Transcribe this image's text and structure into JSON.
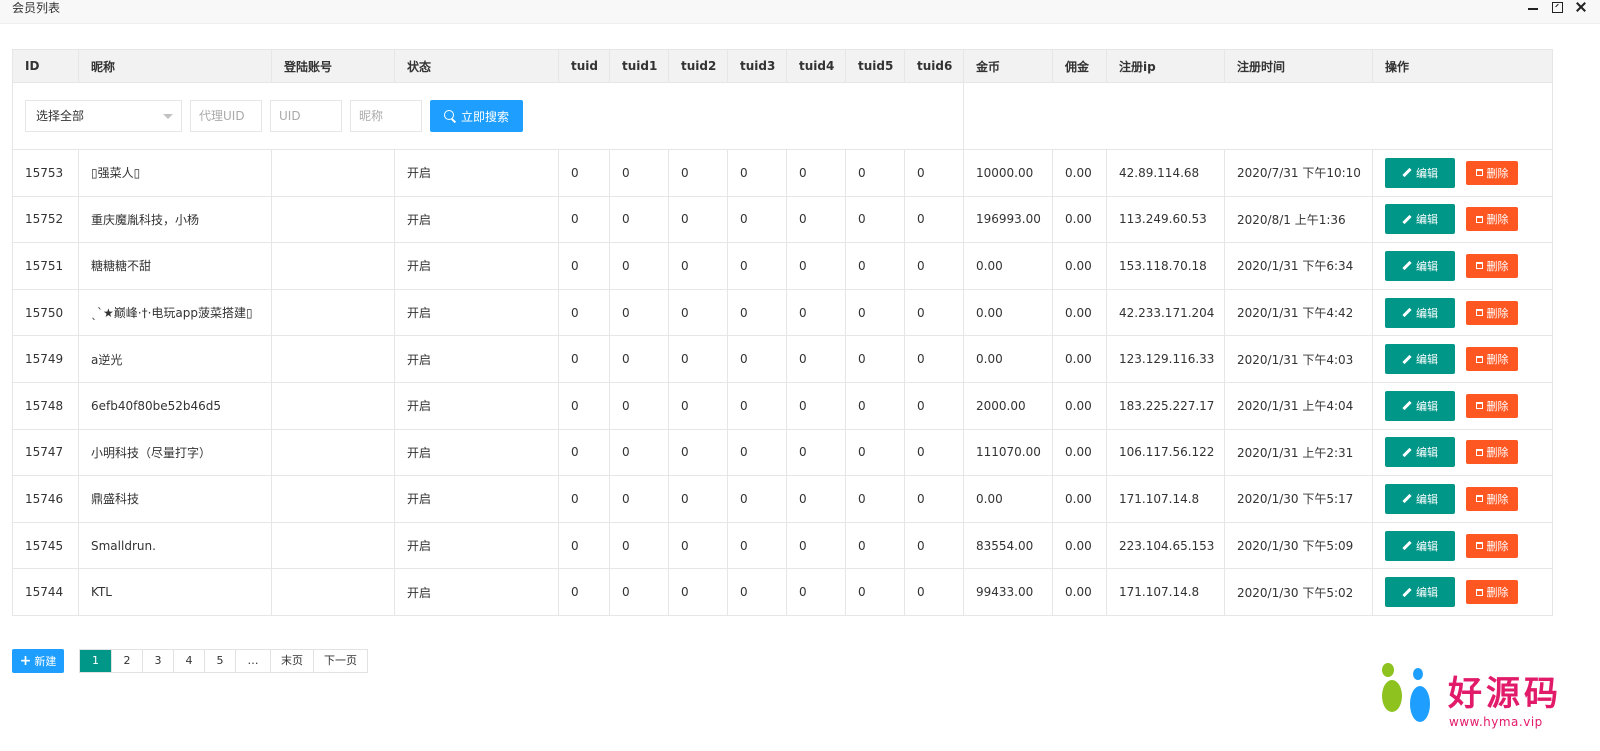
{
  "window": {
    "title": "会员列表"
  },
  "columns": [
    "ID",
    "昵称",
    "登陆账号",
    "状态",
    "tuid",
    "tuid1",
    "tuid2",
    "tuid3",
    "tuid4",
    "tuid5",
    "tuid6",
    "金币",
    "佣金",
    "注册ip",
    "注册时间",
    "操作"
  ],
  "filter": {
    "select_value": "选择全部",
    "agent_uid_placeholder": "代理UID",
    "uid_placeholder": "UID",
    "nickname_placeholder": "昵称",
    "search_label": "立即搜索"
  },
  "rows": [
    {
      "id": "15753",
      "nickname": "▯强菜人▯",
      "account": "",
      "status": "开启",
      "tuid": "0",
      "tuid1": "0",
      "tuid2": "0",
      "tuid3": "0",
      "tuid4": "0",
      "tuid5": "0",
      "tuid6": "0",
      "coins": "10000.00",
      "commission": "0.00",
      "ip": "42.89.114.68",
      "time": "2020/7/31 下午10:10"
    },
    {
      "id": "15752",
      "nickname": "重庆魔胤科技，小杨",
      "account": "",
      "status": "开启",
      "tuid": "0",
      "tuid1": "0",
      "tuid2": "0",
      "tuid3": "0",
      "tuid4": "0",
      "tuid5": "0",
      "tuid6": "0",
      "coins": "196993.00",
      "commission": "0.00",
      "ip": "113.249.60.53",
      "time": "2020/8/1 上午1:36"
    },
    {
      "id": "15751",
      "nickname": "糖糖糖不甜",
      "account": "",
      "status": "开启",
      "tuid": "0",
      "tuid1": "0",
      "tuid2": "0",
      "tuid3": "0",
      "tuid4": "0",
      "tuid5": "0",
      "tuid6": "0",
      "coins": "0.00",
      "commission": "0.00",
      "ip": "153.118.70.18",
      "time": "2020/1/31 下午6:34"
    },
    {
      "id": "15750",
      "nickname": "ˎˋ★巅峰·†·电玩app菠菜搭建▯",
      "account": "",
      "status": "开启",
      "tuid": "0",
      "tuid1": "0",
      "tuid2": "0",
      "tuid3": "0",
      "tuid4": "0",
      "tuid5": "0",
      "tuid6": "0",
      "coins": "0.00",
      "commission": "0.00",
      "ip": "42.233.171.204",
      "time": "2020/1/31 下午4:42"
    },
    {
      "id": "15749",
      "nickname": "a逆光",
      "account": "",
      "status": "开启",
      "tuid": "0",
      "tuid1": "0",
      "tuid2": "0",
      "tuid3": "0",
      "tuid4": "0",
      "tuid5": "0",
      "tuid6": "0",
      "coins": "0.00",
      "commission": "0.00",
      "ip": "123.129.116.33",
      "time": "2020/1/31 下午4:03"
    },
    {
      "id": "15748",
      "nickname": "6efb40f80be52b46d5",
      "account": "",
      "status": "开启",
      "tuid": "0",
      "tuid1": "0",
      "tuid2": "0",
      "tuid3": "0",
      "tuid4": "0",
      "tuid5": "0",
      "tuid6": "0",
      "coins": "2000.00",
      "commission": "0.00",
      "ip": "183.225.227.17",
      "time": "2020/1/31 上午4:04"
    },
    {
      "id": "15747",
      "nickname": "小明科技（尽量打字）",
      "account": "",
      "status": "开启",
      "tuid": "0",
      "tuid1": "0",
      "tuid2": "0",
      "tuid3": "0",
      "tuid4": "0",
      "tuid5": "0",
      "tuid6": "0",
      "coins": "111070.00",
      "commission": "0.00",
      "ip": "106.117.56.122",
      "time": "2020/1/31 上午2:31"
    },
    {
      "id": "15746",
      "nickname": "鼎盛科技",
      "account": "",
      "status": "开启",
      "tuid": "0",
      "tuid1": "0",
      "tuid2": "0",
      "tuid3": "0",
      "tuid4": "0",
      "tuid5": "0",
      "tuid6": "0",
      "coins": "0.00",
      "commission": "0.00",
      "ip": "171.107.14.8",
      "time": "2020/1/30 下午5:17"
    },
    {
      "id": "15745",
      "nickname": "Smalldrun.",
      "account": "",
      "status": "开启",
      "tuid": "0",
      "tuid1": "0",
      "tuid2": "0",
      "tuid3": "0",
      "tuid4": "0",
      "tuid5": "0",
      "tuid6": "0",
      "coins": "83554.00",
      "commission": "0.00",
      "ip": "223.104.65.153",
      "time": "2020/1/30 下午5:09"
    },
    {
      "id": "15744",
      "nickname": "KTL",
      "account": "",
      "status": "开启",
      "tuid": "0",
      "tuid1": "0",
      "tuid2": "0",
      "tuid3": "0",
      "tuid4": "0",
      "tuid5": "0",
      "tuid6": "0",
      "coins": "99433.00",
      "commission": "0.00",
      "ip": "171.107.14.8",
      "time": "2020/1/30 下午5:02"
    }
  ],
  "actions": {
    "edit_label": "编辑",
    "delete_label": "删除"
  },
  "footer": {
    "new_label": "新建",
    "pages": [
      "1",
      "2",
      "3",
      "4",
      "5"
    ],
    "ellipsis": "…",
    "last_label": "末页",
    "next_label": "下一页",
    "current_page": "1"
  },
  "watermark": {
    "text": "好源码",
    "url": "www.hyma.vip"
  },
  "colors": {
    "primary_blue": "#1e9fff",
    "edit_green": "#009688",
    "delete_orange": "#ff5722",
    "status_green": "#2e9c2e",
    "watermark_pink": "#e11b6a"
  },
  "icons": {
    "search": "search-icon",
    "edit": "pencil-icon",
    "delete": "trash-icon",
    "new": "plus-icon",
    "select": "chevron-down-icon"
  }
}
